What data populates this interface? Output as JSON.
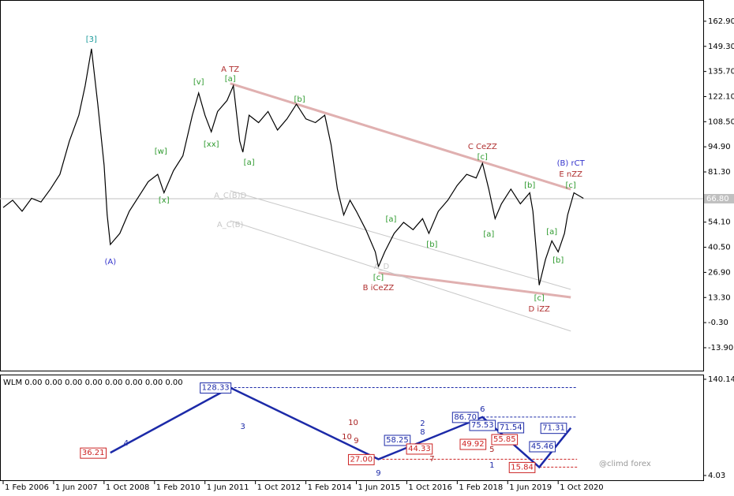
{
  "chart_data": [
    {
      "type": "line",
      "xlim": [
        "2006-01",
        "2024-08"
      ],
      "ylim": [
        -26.3,
        174.4
      ],
      "yticks": [
        {
          "value": 162.9,
          "label": "162.90"
        },
        {
          "value": 149.3,
          "label": "149.30"
        },
        {
          "value": 135.7,
          "label": "135.70"
        },
        {
          "value": 122.1,
          "label": "122.10"
        },
        {
          "value": 108.5,
          "label": "108.50"
        },
        {
          "value": 94.9,
          "label": "94.90"
        },
        {
          "value": 81.3,
          "label": "81.30"
        },
        {
          "value": 54.1,
          "label": "54.10"
        },
        {
          "value": 40.5,
          "label": "40.50"
        },
        {
          "value": 26.9,
          "label": "26.90"
        },
        {
          "value": 13.3,
          "label": "13.30"
        },
        {
          "value": -0.3,
          "label": "-0.30"
        },
        {
          "value": -13.9,
          "label": "-13.90"
        }
      ],
      "last": {
        "value": 66.8,
        "label": "66.80"
      },
      "series": [
        {
          "color": "#000000",
          "x": [
            "2006-02",
            "2006-05",
            "2006-08",
            "2006-11",
            "2007-02",
            "2007-05",
            "2007-08",
            "2007-11",
            "2008-02",
            "2008-04",
            "2008-06",
            "2008-08",
            "2008-10",
            "2008-11",
            "2008-12",
            "2009-03",
            "2009-06",
            "2009-09",
            "2009-12",
            "2010-03",
            "2010-05",
            "2010-08",
            "2010-11",
            "2011-02",
            "2011-04",
            "2011-06",
            "2011-08",
            "2011-10",
            "2012-01",
            "2012-03",
            "2012-05",
            "2012-06",
            "2012-08",
            "2012-11",
            "2013-02",
            "2013-05",
            "2013-08",
            "2013-11",
            "2014-02",
            "2014-05",
            "2014-08",
            "2014-10",
            "2014-12",
            "2015-02",
            "2015-04",
            "2015-06",
            "2015-09",
            "2015-12",
            "2016-01",
            "2016-03",
            "2016-06",
            "2016-09",
            "2016-12",
            "2017-03",
            "2017-05",
            "2017-08",
            "2017-11",
            "2018-02",
            "2018-05",
            "2018-08",
            "2018-10",
            "2018-12",
            "2019-02",
            "2019-04",
            "2019-07",
            "2019-10",
            "2020-01",
            "2020-02",
            "2020-04",
            "2020-06",
            "2020-08",
            "2020-10",
            "2020-12",
            "2021-01",
            "2021-03",
            "2021-06"
          ],
          "values": [
            62,
            66,
            60,
            67,
            65,
            72,
            80,
            98,
            112,
            128,
            148,
            118,
            85,
            58,
            42,
            48,
            60,
            68,
            76,
            80,
            70,
            82,
            90,
            112,
            124,
            112,
            103,
            114,
            120,
            128,
            98,
            92,
            112,
            108,
            114,
            104,
            110,
            118,
            110,
            108,
            112,
            96,
            72,
            58,
            66,
            60,
            50,
            38,
            30,
            38,
            48,
            54,
            50,
            56,
            48,
            60,
            66,
            74,
            80,
            78,
            86,
            72,
            56,
            64,
            72,
            64,
            70,
            60,
            20,
            34,
            44,
            38,
            48,
            58,
            70,
            67
          ]
        }
      ],
      "trendlines": [
        {
          "color": "#e0b0b0",
          "x": [
            "2012-02",
            "2021-02"
          ],
          "y": [
            129.2,
            71.9
          ]
        },
        {
          "color": "#e0b0b0",
          "x": [
            "2016-01",
            "2021-02"
          ],
          "y": [
            26.7,
            13.4
          ]
        },
        {
          "color": "#c8c8c8",
          "x": [
            "2012-02",
            "2021-02"
          ],
          "y": [
            71.1,
            17.7
          ]
        },
        {
          "color": "#c8c8c8",
          "x": [
            "2012-02",
            "2021-02"
          ],
          "y": [
            54.9,
            -4.9
          ]
        }
      ],
      "annotations": [
        {
          "text": "[3]",
          "x": "2008-06",
          "y": 153.1,
          "color": "#1a9a9a"
        },
        {
          "text": "(A)",
          "x": "2008-12",
          "y": 32.7,
          "color": "#3333cc"
        },
        {
          "text": "[w]",
          "x": "2010-04",
          "y": 92.4,
          "color": "#2e9a2e"
        },
        {
          "text": "[x]",
          "x": "2010-05",
          "y": 66.0,
          "color": "#2e9a2e"
        },
        {
          "text": "[v]",
          "x": "2011-04",
          "y": 130.0,
          "color": "#2e9a2e"
        },
        {
          "text": "[xx]",
          "x": "2011-08",
          "y": 96.3,
          "color": "#2e9a2e"
        },
        {
          "text": "A TZ",
          "x": "2012-02",
          "y": 136.9,
          "color": "#b03030"
        },
        {
          "text": "[a]",
          "x": "2012-02",
          "y": 131.7,
          "color": "#2e9a2e"
        },
        {
          "text": "[a]",
          "x": "2012-08",
          "y": 86.5,
          "color": "#2e9a2e"
        },
        {
          "text": "[b]",
          "x": "2013-12",
          "y": 120.6,
          "color": "#2e9a2e"
        },
        {
          "text": "[a]",
          "x": "2016-05",
          "y": 55.7,
          "color": "#2e9a2e"
        },
        {
          "text": "[c]",
          "x": "2016-01",
          "y": 24.1,
          "color": "#2e9a2e"
        },
        {
          "text": "B iCeZZ",
          "x": "2016-01",
          "y": 18.6,
          "color": "#b03030"
        },
        {
          "text": "[b]",
          "x": "2017-06",
          "y": 42.1,
          "color": "#2e9a2e"
        },
        {
          "text": "C CeZZ",
          "x": "2018-10",
          "y": 95.0,
          "color": "#b03030"
        },
        {
          "text": "[c]",
          "x": "2018-10",
          "y": 89.5,
          "color": "#2e9a2e"
        },
        {
          "text": "[a]",
          "x": "2018-12",
          "y": 47.6,
          "color": "#2e9a2e"
        },
        {
          "text": "[b]",
          "x": "2020-01",
          "y": 74.1,
          "color": "#2e9a2e"
        },
        {
          "text": "[c]",
          "x": "2020-04",
          "y": 13.0,
          "color": "#2e9a2e"
        },
        {
          "text": "D iZZ",
          "x": "2020-04",
          "y": 7.1,
          "color": "#b03030"
        },
        {
          "text": "[a]",
          "x": "2020-08",
          "y": 48.9,
          "color": "#2e9a2e"
        },
        {
          "text": "[b]",
          "x": "2020-10",
          "y": 33.5,
          "color": "#2e9a2e"
        },
        {
          "text": "(B) rCT",
          "x": "2021-02",
          "y": 86.0,
          "color": "#3333cc"
        },
        {
          "text": "E nZZ",
          "x": "2021-02",
          "y": 80.1,
          "color": "#b03030"
        },
        {
          "text": "[c]",
          "x": "2021-02",
          "y": 74.1,
          "color": "#2e9a2e"
        },
        {
          "text": "A_C(B)D",
          "x": "2012-02",
          "y": 68.5,
          "color": "#c8c8c8"
        },
        {
          "text": "A_C(B)",
          "x": "2012-02",
          "y": 52.8,
          "color": "#c8c8c8"
        },
        {
          "text": "A_D",
          "x": "2016-02",
          "y": 30.1,
          "color": "#c8c8c8"
        }
      ]
    },
    {
      "type": "line",
      "title": "WLM 0.00 0.00 0.00 0.00 0.00 0.00 0.00 0.00",
      "watermark": "@climd forex",
      "xlim": [
        "2006-01",
        "2024-08"
      ],
      "ylim": [
        -3.8,
        146.8
      ],
      "yticks": [
        140.14,
        4.03
      ],
      "xticks": [
        {
          "value": "2006-02",
          "label": "1 Feb 2006"
        },
        {
          "value": "2007-06",
          "label": "1 Jun 2007"
        },
        {
          "value": "2008-10",
          "label": "1 Oct 2008"
        },
        {
          "value": "2010-02",
          "label": "1 Feb 2010"
        },
        {
          "value": "2011-06",
          "label": "1 Jun 2011"
        },
        {
          "value": "2012-10",
          "label": "1 Oct 2012"
        },
        {
          "value": "2014-02",
          "label": "1 Feb 2014"
        },
        {
          "value": "2015-06",
          "label": "1 Jun 2015"
        },
        {
          "value": "2016-10",
          "label": "1 Oct 2016"
        },
        {
          "value": "2018-02",
          "label": "1 Feb 2018"
        },
        {
          "value": "2019-06",
          "label": "1 Jun 2019"
        },
        {
          "value": "2020-10",
          "label": "1 Oct 2020"
        }
      ],
      "series": [
        {
          "color": "#1c2aa8",
          "x": [
            "2008-12",
            "2012-02",
            "2016-01",
            "2018-10",
            "2020-04",
            "2021-02"
          ],
          "values": [
            36.21,
            128.33,
            27.0,
            86.7,
            15.84,
            71.31
          ],
          "value_labels": [
            "36.21",
            "128.33",
            "27.00",
            "86.70",
            "15.84",
            "71.31"
          ],
          "label_colors": [
            "#cc2222",
            "#1c2aa8",
            "#cc2222",
            "#1c2aa8",
            "#cc2222",
            "#1c2aa8"
          ]
        }
      ],
      "levels": [
        {
          "value": 128.33,
          "color": "#1c2aa8",
          "x": [
            "2012-02",
            "2021-04"
          ]
        },
        {
          "value": 86.7,
          "color": "#1c2aa8",
          "x": [
            "2018-10",
            "2021-04"
          ]
        },
        {
          "value": 27.0,
          "color": "#cc2222",
          "x": [
            "2016-01",
            "2021-04"
          ]
        },
        {
          "value": 15.84,
          "color": "#cc2222",
          "x": [
            "2020-04",
            "2021-04"
          ]
        }
      ],
      "annotations": [
        {
          "text": "58.25",
          "x": "2016-07",
          "y": 54.2,
          "color": "#1c2aa8",
          "box": true
        },
        {
          "text": "44.33",
          "x": "2017-02",
          "y": 42.0,
          "color": "#cc2222",
          "box": true
        },
        {
          "text": "49.92",
          "x": "2018-07",
          "y": 48.6,
          "color": "#cc2222",
          "box": true
        },
        {
          "text": "75.53",
          "x": "2018-10",
          "y": 75.4,
          "color": "#1c2aa8",
          "box": true
        },
        {
          "text": "55.85",
          "x": "2019-05",
          "y": 55.3,
          "color": "#cc2222",
          "box": true
        },
        {
          "text": "71.54",
          "x": "2019-07",
          "y": 72.1,
          "color": "#1c2aa8",
          "box": true
        },
        {
          "text": "45.46",
          "x": "2020-05",
          "y": 45.3,
          "color": "#1c2aa8",
          "box": true
        },
        {
          "text": "4",
          "x": "2009-05",
          "y": 49.8,
          "color": "#1c2aa8",
          "box": false
        },
        {
          "text": "3",
          "x": "2012-06",
          "y": 73.2,
          "color": "#1c2aa8",
          "box": false
        },
        {
          "text": "10",
          "x": "2015-05",
          "y": 78.8,
          "color": "#aa2222",
          "box": false
        },
        {
          "text": "10",
          "x": "2015-03",
          "y": 58.7,
          "color": "#aa2222",
          "box": false
        },
        {
          "text": "9",
          "x": "2015-06",
          "y": 53.1,
          "color": "#aa2222",
          "box": false
        },
        {
          "text": "2",
          "x": "2017-03",
          "y": 77.7,
          "color": "#1c2aa8",
          "box": false
        },
        {
          "text": "8",
          "x": "2017-03",
          "y": 65.4,
          "color": "#1c2aa8",
          "box": false
        },
        {
          "text": "7",
          "x": "2017-06",
          "y": 27.4,
          "color": "#aa2222",
          "box": false
        },
        {
          "text": "6",
          "x": "2018-10",
          "y": 97.7,
          "color": "#1c2aa8",
          "box": false
        },
        {
          "text": "5",
          "x": "2019-01",
          "y": 40.8,
          "color": "#aa2222",
          "box": false
        },
        {
          "text": "1",
          "x": "2019-01",
          "y": 18.5,
          "color": "#1c2aa8",
          "box": false
        },
        {
          "text": "9",
          "x": "2016-01",
          "y": 7.4,
          "color": "#1c2aa8",
          "box": false
        }
      ]
    }
  ]
}
